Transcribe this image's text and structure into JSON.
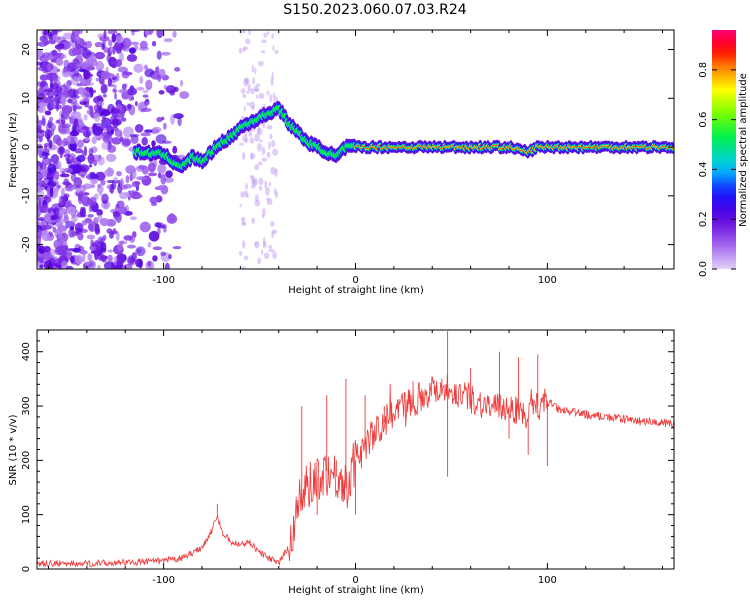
{
  "title": "S150.2023.060.07.03.R24",
  "chart_data": [
    {
      "type": "heatmap",
      "xlabel": "Height of straight line (km)",
      "ylabel": "Frequency (Hz)",
      "xlim": [
        -166,
        166
      ],
      "ylim": [
        -25,
        24
      ],
      "xticks": [
        "-100",
        "0",
        "100"
      ],
      "yticks": [
        "-20",
        "-10",
        "0",
        "10",
        "20"
      ],
      "ridge": {
        "x": [
          -115,
          -100,
          -95,
          -90,
          -85,
          -80,
          -75,
          -70,
          -65,
          -60,
          -55,
          -50,
          -45,
          -40,
          -35,
          -30,
          -25,
          -20,
          -15,
          -10,
          -5,
          0,
          5,
          10,
          20,
          40,
          60,
          80,
          85,
          90,
          95,
          100,
          120,
          140,
          166
        ],
        "y": [
          -1,
          -1.5,
          -3,
          -4,
          -2,
          -3,
          -1,
          1,
          2,
          4,
          5,
          6,
          7,
          8,
          5,
          3,
          1,
          0,
          -1,
          -2,
          0,
          0,
          0,
          0,
          0,
          0,
          0,
          0,
          -0.5,
          -1,
          0,
          0,
          0,
          0,
          0
        ]
      },
      "colorbar": {
        "label": "Normalized spectral amplitude",
        "ticks": [
          "0.0",
          "0.2",
          "0.4",
          "0.6",
          "0.8"
        ],
        "range": [
          0,
          0.96
        ]
      }
    },
    {
      "type": "line",
      "xlabel": "Height of straight line (km)",
      "ylabel": "SNR (10 * v/v)",
      "xlim": [
        -166,
        166
      ],
      "ylim": [
        0,
        440
      ],
      "xticks": [
        "-100",
        "0",
        "100"
      ],
      "yticks": [
        "0",
        "100",
        "200",
        "300",
        "400"
      ],
      "series": [
        {
          "color": "#ee3a3a",
          "x": [
            -166,
            -140,
            -120,
            -100,
            -90,
            -80,
            -75,
            -72,
            -70,
            -65,
            -60,
            -55,
            -50,
            -45,
            -40,
            -35,
            -30,
            -25,
            -20,
            -15,
            -10,
            -5,
            0,
            5,
            10,
            15,
            20,
            25,
            30,
            35,
            40,
            45,
            50,
            55,
            60,
            65,
            70,
            75,
            80,
            85,
            90,
            95,
            100,
            105,
            110,
            120,
            130,
            140,
            150,
            160,
            166
          ],
          "y": [
            10,
            10,
            12,
            15,
            20,
            40,
            70,
            100,
            70,
            50,
            45,
            50,
            30,
            20,
            10,
            40,
            120,
            150,
            170,
            180,
            170,
            150,
            200,
            230,
            250,
            270,
            290,
            300,
            310,
            320,
            330,
            335,
            330,
            320,
            315,
            305,
            300,
            295,
            300,
            290,
            280,
            300,
            310,
            295,
            290,
            285,
            280,
            275,
            272,
            270,
            265
          ],
          "spikes": [
            {
              "x": -72,
              "y": 120
            },
            {
              "x": -28,
              "y": 300
            },
            {
              "x": -20,
              "y": 100
            },
            {
              "x": -15,
              "y": 320
            },
            {
              "x": -10,
              "y": 200
            },
            {
              "x": -5,
              "y": 350
            },
            {
              "x": 0,
              "y": 100
            },
            {
              "x": 5,
              "y": 320
            },
            {
              "x": 15,
              "y": 300
            },
            {
              "x": 30,
              "y": 345
            },
            {
              "x": 45,
              "y": 350
            },
            {
              "x": 48,
              "y": 438
            },
            {
              "x": 48,
              "y": 170
            },
            {
              "x": 60,
              "y": 370
            },
            {
              "x": 75,
              "y": 400
            },
            {
              "x": 80,
              "y": 240
            },
            {
              "x": 85,
              "y": 390
            },
            {
              "x": 90,
              "y": 210
            },
            {
              "x": 95,
              "y": 395
            },
            {
              "x": 100,
              "y": 190
            }
          ]
        }
      ]
    }
  ]
}
